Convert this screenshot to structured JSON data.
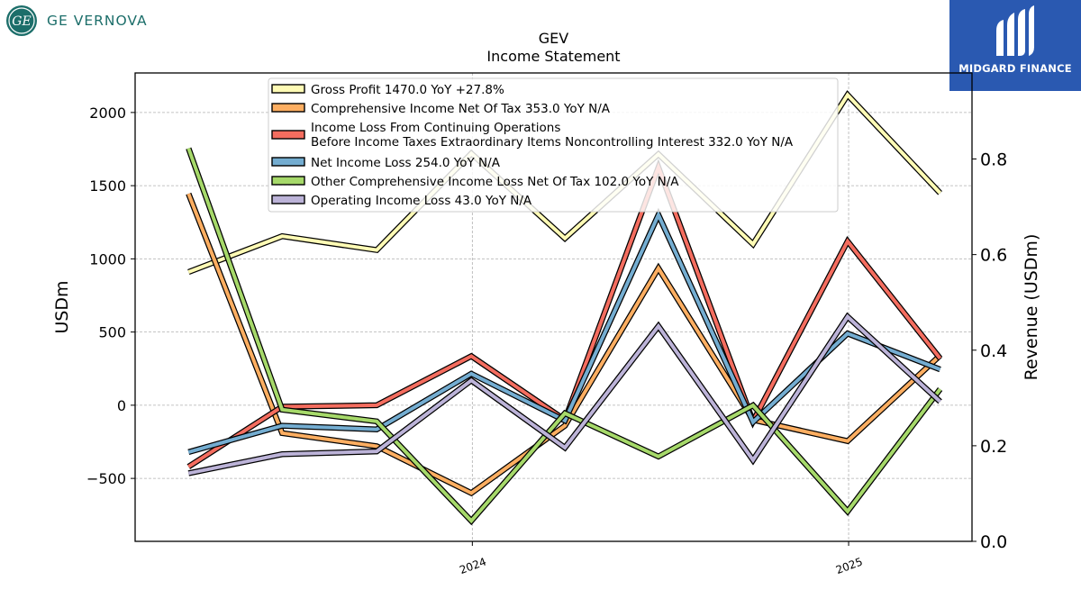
{
  "branding": {
    "left_logo_text": "GE VERNOVA",
    "left_logo_monogram": "GE",
    "right_logo_text": "MIDGARD FINANCE"
  },
  "chart_data": {
    "type": "line",
    "title": "GEV",
    "subtitle": "Income Statement",
    "ylabel": "USDm",
    "y2label": "Revenue (USDm)",
    "ylim": [
      -930,
      2270
    ],
    "y2lim": [
      0.0,
      0.98
    ],
    "yticks": [
      -500,
      0,
      500,
      1000,
      1500,
      2000
    ],
    "ytick_labels": [
      "−500",
      "0",
      "500",
      "1000",
      "1500",
      "2000"
    ],
    "y2ticks": [
      0.0,
      0.2,
      0.4,
      0.6,
      0.8
    ],
    "y2tick_labels": [
      "0.0",
      "0.2",
      "0.4",
      "0.6",
      "0.8"
    ],
    "x": [
      "2023-03-31",
      "2023-06-30",
      "2023-09-30",
      "2023-12-31",
      "2024-03-31",
      "2024-06-30",
      "2024-09-30",
      "2024-12-31",
      "2025-03-31"
    ],
    "xlim": [
      "2023-02-07",
      "2025-05-01"
    ],
    "xticks": [
      "2024-01-01",
      "2025-01-01"
    ],
    "xtick_labels": [
      "2024",
      "2025"
    ],
    "grid": true,
    "legend_position": "top-center",
    "series": [
      {
        "name": "Gross Profit",
        "legend": "Gross Profit  1470.0 YoY +27.8%",
        "color": "#fffbb5",
        "values": [
          910,
          1155,
          1060,
          1720,
          1140,
          1715,
          1100,
          2120,
          1450
        ]
      },
      {
        "name": "Comprehensive Income Net Of Tax",
        "legend": "Comprehensive Income Net Of Tax  353.0 YoY N/A",
        "color": "#fdae61",
        "values": [
          1445,
          -190,
          -280,
          -600,
          -140,
          935,
          -100,
          -245,
          340
        ]
      },
      {
        "name": "Income Loss From Continuing Operations Before Income Taxes Extraordinary Items Noncontrolling Interest",
        "legend_lines": [
          "Income Loss From Continuing Operations",
          "Before Income Taxes Extraordinary Items Noncontrolling Interest  332.0 YoY N/A"
        ],
        "color": "#f46d5f",
        "values": [
          -420,
          -10,
          0,
          335,
          -100,
          1625,
          -110,
          1120,
          320
        ]
      },
      {
        "name": "Net Income Loss",
        "legend": "Net Income Loss  254.0 YoY N/A",
        "color": "#74add1",
        "values": [
          -320,
          -140,
          -165,
          215,
          -105,
          1300,
          -115,
          490,
          245
        ]
      },
      {
        "name": "Other Comprehensive Income Loss Net Of Tax",
        "legend": "Other Comprehensive Income Loss Net Of Tax  102.0 YoY N/A",
        "color": "#a6d96a",
        "values": [
          1755,
          -30,
          -110,
          -790,
          -55,
          -350,
          -1,
          -725,
          110
        ]
      },
      {
        "name": "Operating Income Loss",
        "legend": "Operating Income Loss  43.0 YoY N/A",
        "color": "#bcb3d8",
        "values": [
          -465,
          -335,
          -315,
          170,
          -290,
          540,
          -375,
          605,
          25
        ]
      }
    ]
  }
}
